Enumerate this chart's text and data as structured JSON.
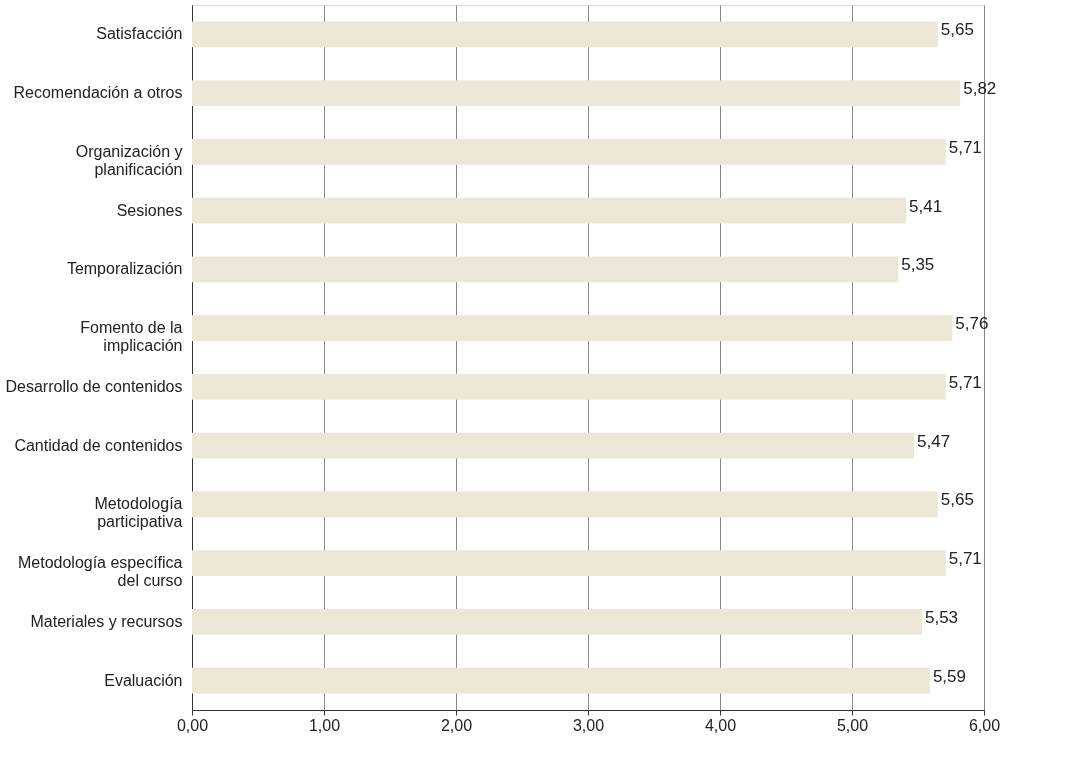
{
  "chart_data": {
    "type": "bar",
    "orientation": "horizontal",
    "categories": [
      "Satisfacción",
      "Recomendación a otros",
      "Organización y\nplanificación",
      "Sesiones",
      "Temporalización",
      "Fomento de la\nimplicación",
      "Desarrollo de contenidos",
      "Cantidad de contenidos",
      "Metodología\nparticipativa",
      "Metodología específica\ndel curso",
      "Materiales y recursos",
      "Evaluación"
    ],
    "values": [
      5.65,
      5.82,
      5.71,
      5.41,
      5.35,
      5.76,
      5.71,
      5.47,
      5.65,
      5.71,
      5.53,
      5.59
    ],
    "value_labels": [
      "5,65",
      "5,82",
      "5,71",
      "5,41",
      "5,35",
      "5,76",
      "5,71",
      "5,47",
      "5,65",
      "5,71",
      "5,53",
      "5,59"
    ],
    "color": "#ebe6d6",
    "xlim": [
      0,
      6
    ],
    "xticks": [
      {
        "value": 0,
        "label": "0,00"
      },
      {
        "value": 1,
        "label": "1,00"
      },
      {
        "value": 2,
        "label": "2,00"
      },
      {
        "value": 3,
        "label": "3,00"
      },
      {
        "value": 4,
        "label": "4,00"
      },
      {
        "value": 5,
        "label": "5,00"
      },
      {
        "value": 6,
        "label": "6,00"
      }
    ],
    "grid": "x"
  }
}
